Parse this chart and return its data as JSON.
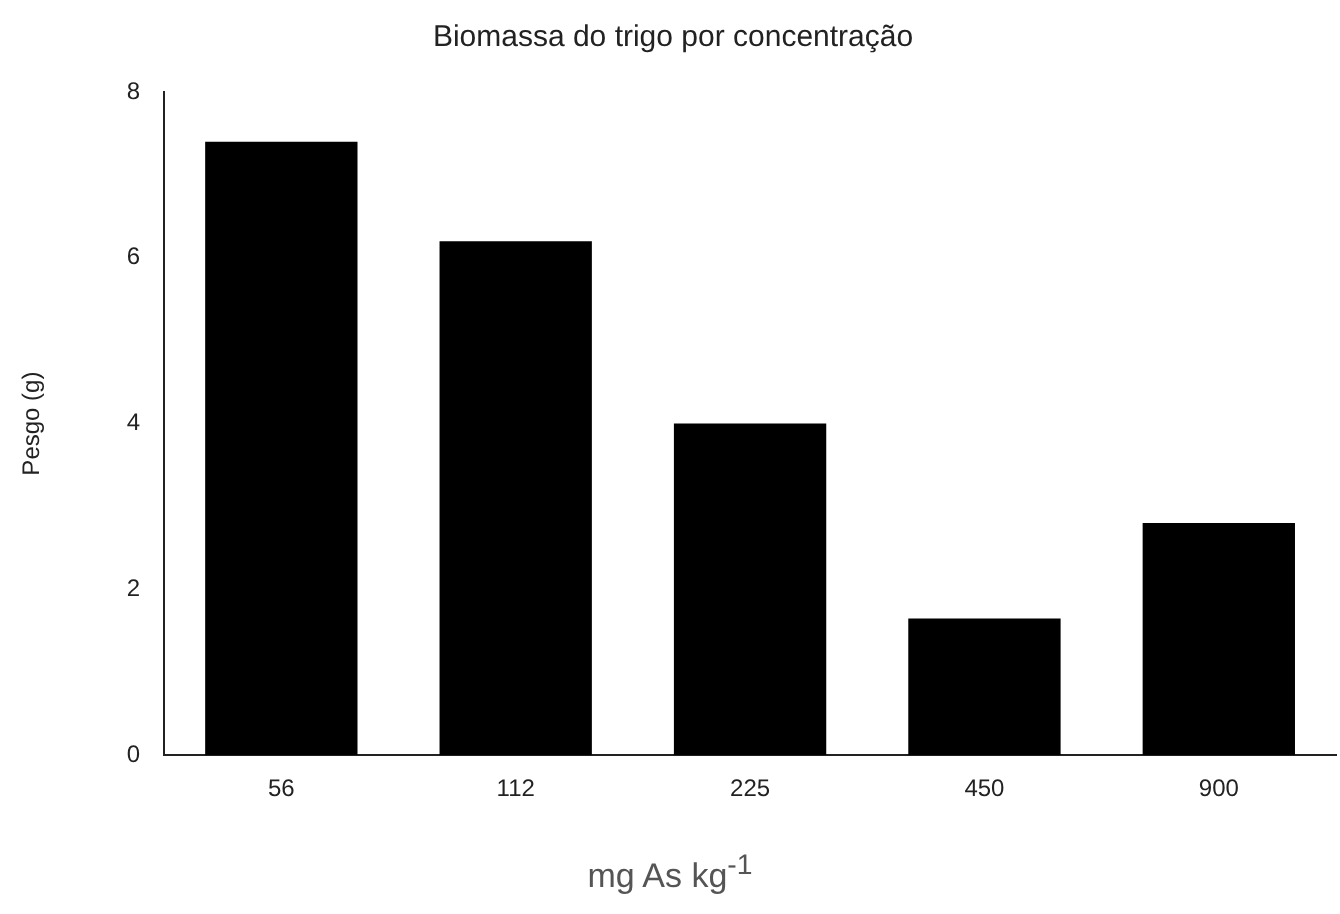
{
  "chart_data": {
    "type": "bar",
    "title": "Biomassa do trigo por concentração",
    "xlabel": "mg As kg$^{-1}$",
    "ylabel": "Pesgo (g)",
    "categories": [
      "56",
      "112",
      "225",
      "450",
      "900"
    ],
    "values": [
      7.4,
      6.2,
      4.0,
      1.65,
      2.8
    ],
    "color": "#000000",
    "ylim": [
      0,
      8
    ],
    "yticks": [
      0,
      2,
      4,
      6,
      8
    ],
    "grid": false,
    "legend": false
  }
}
